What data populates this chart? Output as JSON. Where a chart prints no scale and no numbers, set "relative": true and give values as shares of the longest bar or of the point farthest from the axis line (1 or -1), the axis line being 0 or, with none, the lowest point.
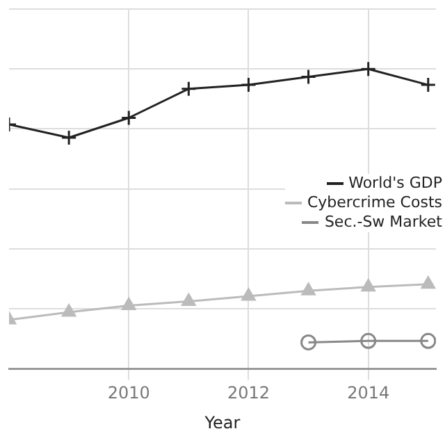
{
  "chart_data": {
    "type": "line",
    "xlabel": "Year",
    "relative": true,
    "grid": true,
    "legend": "right",
    "xlim": [
      2008,
      2015.13
    ],
    "xticks": [
      2010,
      2012,
      2014
    ],
    "series": [
      {
        "name": "World's GDP",
        "color": "#222222",
        "marker": "cross",
        "x": [
          2008,
          2009,
          2010,
          2011,
          2012,
          2013,
          2014,
          2015
        ],
        "values": [
          0.815,
          0.771,
          0.837,
          0.934,
          0.947,
          0.974,
          1,
          0.947
        ]
      },
      {
        "name": "Cybercrime Costs",
        "color": "#bbbbbb",
        "marker": "triangle",
        "x": [
          2008,
          2009,
          2010,
          2011,
          2012,
          2013,
          2014,
          2015
        ],
        "values": [
          0.163,
          0.189,
          0.211,
          0.225,
          0.242,
          0.26,
          0.273,
          0.282
        ]
      },
      {
        "name": "Sec.-Sw Market",
        "color": "#888888",
        "marker": "circle",
        "x": [
          2013,
          2014,
          2015
        ],
        "values": [
          0.088,
          0.093,
          0.093
        ]
      }
    ]
  }
}
